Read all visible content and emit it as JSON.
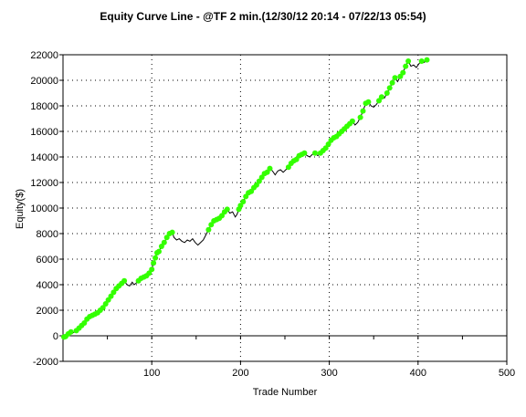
{
  "chart_data": {
    "type": "line",
    "title": "Equity Curve Line - @TF 2 min.(12/30/12 20:14 - 07/22/13 05:54)",
    "xlabel": "Trade Number",
    "ylabel": "Equity($)",
    "xlim": [
      0,
      500
    ],
    "ylim": [
      -2000,
      22000
    ],
    "xticks": [
      "100",
      "200",
      "300",
      "400",
      "500"
    ],
    "yticks": [
      "22000",
      "20000",
      "18000",
      "16000",
      "14000",
      "12000",
      "10000",
      "8000",
      "6000",
      "4000",
      "2000",
      "0",
      "-2000"
    ],
    "grid": "dotted",
    "legend": "none",
    "colors": {
      "line": "#000000",
      "new_high": "#33ff00"
    },
    "series": [
      {
        "points": [
          [
            1,
            -100
          ],
          [
            3,
            -50
          ],
          [
            6,
            150
          ],
          [
            9,
            300
          ],
          [
            12,
            250
          ],
          [
            15,
            400
          ],
          [
            18,
            600
          ],
          [
            21,
            800
          ],
          [
            24,
            1000
          ],
          [
            27,
            1300
          ],
          [
            30,
            1500
          ],
          [
            33,
            1600
          ],
          [
            36,
            1700
          ],
          [
            39,
            1800
          ],
          [
            42,
            2000
          ],
          [
            45,
            2200
          ],
          [
            48,
            2500
          ],
          [
            51,
            2800
          ],
          [
            54,
            3100
          ],
          [
            57,
            3400
          ],
          [
            60,
            3700
          ],
          [
            63,
            3900
          ],
          [
            66,
            4100
          ],
          [
            69,
            4300
          ],
          [
            72,
            4000
          ],
          [
            75,
            3900
          ],
          [
            78,
            4200
          ],
          [
            80,
            4000
          ],
          [
            82,
            4100
          ],
          [
            85,
            4300
          ],
          [
            88,
            4500
          ],
          [
            91,
            4600
          ],
          [
            94,
            4700
          ],
          [
            97,
            4900
          ],
          [
            100,
            5200
          ],
          [
            102,
            5700
          ],
          [
            104,
            6100
          ],
          [
            106,
            6500
          ],
          [
            108,
            6600
          ],
          [
            111,
            7000
          ],
          [
            114,
            7300
          ],
          [
            117,
            7700
          ],
          [
            120,
            8000
          ],
          [
            123,
            8100
          ],
          [
            125,
            7700
          ],
          [
            128,
            7500
          ],
          [
            131,
            7600
          ],
          [
            134,
            7400
          ],
          [
            137,
            7300
          ],
          [
            140,
            7500
          ],
          [
            143,
            7400
          ],
          [
            146,
            7600
          ],
          [
            149,
            7300
          ],
          [
            152,
            7100
          ],
          [
            155,
            7300
          ],
          [
            158,
            7500
          ],
          [
            161,
            7900
          ],
          [
            164,
            8300
          ],
          [
            167,
            8700
          ],
          [
            170,
            9000
          ],
          [
            173,
            9100
          ],
          [
            176,
            9200
          ],
          [
            179,
            9400
          ],
          [
            182,
            9700
          ],
          [
            185,
            9900
          ],
          [
            188,
            9600
          ],
          [
            191,
            9700
          ],
          [
            194,
            9300
          ],
          [
            196,
            9500
          ],
          [
            198,
            9900
          ],
          [
            200,
            10200
          ],
          [
            203,
            10500
          ],
          [
            206,
            10900
          ],
          [
            209,
            11200
          ],
          [
            212,
            11300
          ],
          [
            215,
            11600
          ],
          [
            218,
            11800
          ],
          [
            221,
            12100
          ],
          [
            224,
            12400
          ],
          [
            227,
            12700
          ],
          [
            230,
            12800
          ],
          [
            233,
            13100
          ],
          [
            236,
            12900
          ],
          [
            239,
            12600
          ],
          [
            242,
            12900
          ],
          [
            245,
            13000
          ],
          [
            248,
            12800
          ],
          [
            251,
            13000
          ],
          [
            254,
            13200
          ],
          [
            257,
            13500
          ],
          [
            260,
            13700
          ],
          [
            263,
            13800
          ],
          [
            266,
            14100
          ],
          [
            269,
            14200
          ],
          [
            272,
            14300
          ],
          [
            275,
            14100
          ],
          [
            278,
            14000
          ],
          [
            281,
            14200
          ],
          [
            284,
            14300
          ],
          [
            287,
            14100
          ],
          [
            290,
            14300
          ],
          [
            293,
            14500
          ],
          [
            296,
            14700
          ],
          [
            299,
            15000
          ],
          [
            302,
            15300
          ],
          [
            305,
            15500
          ],
          [
            308,
            15600
          ],
          [
            311,
            15800
          ],
          [
            314,
            16000
          ],
          [
            317,
            16200
          ],
          [
            320,
            16400
          ],
          [
            323,
            16600
          ],
          [
            326,
            16800
          ],
          [
            329,
            16500
          ],
          [
            332,
            16700
          ],
          [
            335,
            17100
          ],
          [
            338,
            17600
          ],
          [
            341,
            18200
          ],
          [
            344,
            18300
          ],
          [
            347,
            18000
          ],
          [
            350,
            17900
          ],
          [
            353,
            18100
          ],
          [
            356,
            18400
          ],
          [
            359,
            18700
          ],
          [
            362,
            18600
          ],
          [
            365,
            19000
          ],
          [
            368,
            19400
          ],
          [
            371,
            19800
          ],
          [
            374,
            20200
          ],
          [
            377,
            19900
          ],
          [
            380,
            20300
          ],
          [
            383,
            20600
          ],
          [
            386,
            21100
          ],
          [
            389,
            21500
          ],
          [
            392,
            21100
          ],
          [
            395,
            21200
          ],
          [
            398,
            21000
          ],
          [
            401,
            21300
          ],
          [
            404,
            21500
          ],
          [
            407,
            21400
          ],
          [
            410,
            21600
          ],
          [
            412,
            21500
          ]
        ]
      }
    ]
  }
}
